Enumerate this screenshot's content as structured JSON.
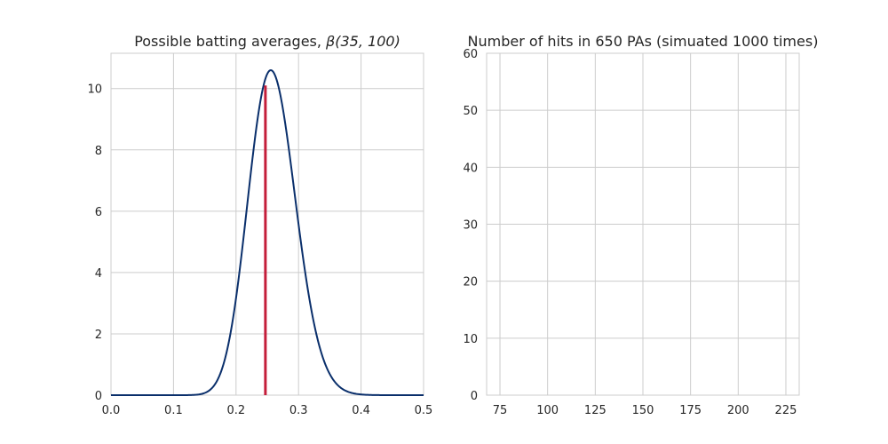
{
  "chart_data": [
    {
      "type": "line",
      "title_text": "Possible batting averages, ",
      "title_math": "β(35, 100)",
      "xlim": [
        0.0,
        0.5
      ],
      "ylim": [
        0,
        11.15
      ],
      "xticks": [
        0.0,
        0.1,
        0.2,
        0.3,
        0.4,
        0.5
      ],
      "xtick_labels": [
        "0.0",
        "0.1",
        "0.2",
        "0.3",
        "0.4",
        "0.5"
      ],
      "yticks": [
        0,
        2,
        4,
        6,
        8,
        10
      ],
      "ytick_labels": [
        "0",
        "2",
        "4",
        "6",
        "8",
        "10"
      ],
      "grid": true,
      "series": [
        {
          "color": "#0a2f6b",
          "distribution": {
            "family": "beta",
            "alpha": 35,
            "beta": 100
          }
        }
      ],
      "vline": {
        "x": 0.247,
        "y0": 0,
        "y1": 10.1,
        "color": "#c41e3a"
      }
    },
    {
      "type": "bar",
      "title": "Number of hits in 650 PAs (simuated 1000 times)",
      "xlim": [
        68,
        232
      ],
      "ylim": [
        0,
        60
      ],
      "xticks": [
        75,
        100,
        125,
        150,
        175,
        200,
        225
      ],
      "xtick_labels": [
        "75",
        "100",
        "125",
        "150",
        "175",
        "200",
        "225"
      ],
      "yticks": [
        0,
        10,
        20,
        30,
        40,
        50,
        60
      ],
      "ytick_labels": [
        "0",
        "10",
        "20",
        "30",
        "40",
        "50",
        "60"
      ],
      "grid": true,
      "values": []
    }
  ]
}
